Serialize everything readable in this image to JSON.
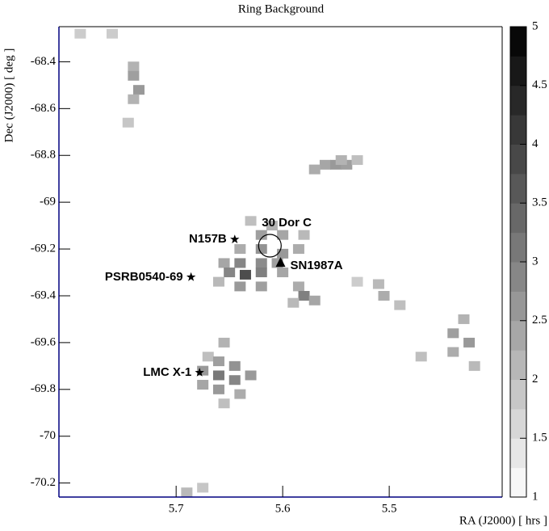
{
  "chart_data": {
    "type": "heatmap",
    "title": "Ring Background",
    "x_label": "RA (J2000) [ hrs ]",
    "y_label": "Dec (J2000) [ deg ]",
    "xlim": [
      5.81,
      5.394
    ],
    "ylim": [
      -70.26,
      -68.25
    ],
    "xticks": [
      5.7,
      5.6,
      5.5
    ],
    "yticks": [
      -68.4,
      -68.6,
      -68.8,
      -69,
      -69.2,
      -69.4,
      -69.6,
      -69.8,
      -70,
      -70.2
    ],
    "zlim": [
      1,
      5
    ],
    "zticks": [
      1,
      1.5,
      2,
      2.5,
      3,
      3.5,
      4,
      4.5,
      5
    ],
    "cells": [
      {
        "ra": 5.79,
        "dec": -68.28,
        "value": 1.8
      },
      {
        "ra": 5.76,
        "dec": -68.28,
        "value": 1.8
      },
      {
        "ra": 5.74,
        "dec": -68.42,
        "value": 2.2
      },
      {
        "ra": 5.74,
        "dec": -68.46,
        "value": 2.5
      },
      {
        "ra": 5.735,
        "dec": -68.52,
        "value": 2.6
      },
      {
        "ra": 5.74,
        "dec": -68.56,
        "value": 2.2
      },
      {
        "ra": 5.745,
        "dec": -68.66,
        "value": 1.9
      },
      {
        "ra": 5.56,
        "dec": -68.84,
        "value": 2.4
      },
      {
        "ra": 5.55,
        "dec": -68.84,
        "value": 2.6
      },
      {
        "ra": 5.54,
        "dec": -68.84,
        "value": 2.5
      },
      {
        "ra": 5.57,
        "dec": -68.86,
        "value": 2.3
      },
      {
        "ra": 5.545,
        "dec": -68.82,
        "value": 2.2
      },
      {
        "ra": 5.53,
        "dec": -68.82,
        "value": 2.0
      },
      {
        "ra": 5.63,
        "dec": -69.08,
        "value": 2.0
      },
      {
        "ra": 5.61,
        "dec": -69.1,
        "value": 2.2
      },
      {
        "ra": 5.62,
        "dec": -69.14,
        "value": 2.5
      },
      {
        "ra": 5.6,
        "dec": -69.14,
        "value": 2.4
      },
      {
        "ra": 5.58,
        "dec": -69.14,
        "value": 2.1
      },
      {
        "ra": 5.64,
        "dec": -69.2,
        "value": 2.3
      },
      {
        "ra": 5.62,
        "dec": -69.2,
        "value": 2.7
      },
      {
        "ra": 5.6,
        "dec": -69.22,
        "value": 2.6
      },
      {
        "ra": 5.585,
        "dec": -69.2,
        "value": 2.3
      },
      {
        "ra": 5.655,
        "dec": -69.26,
        "value": 2.4
      },
      {
        "ra": 5.64,
        "dec": -69.26,
        "value": 2.9
      },
      {
        "ra": 5.62,
        "dec": -69.26,
        "value": 2.8
      },
      {
        "ra": 5.605,
        "dec": -69.26,
        "value": 2.5
      },
      {
        "ra": 5.65,
        "dec": -69.3,
        "value": 2.9
      },
      {
        "ra": 5.635,
        "dec": -69.31,
        "value": 3.8
      },
      {
        "ra": 5.62,
        "dec": -69.3,
        "value": 3.0
      },
      {
        "ra": 5.6,
        "dec": -69.3,
        "value": 2.4
      },
      {
        "ra": 5.64,
        "dec": -69.36,
        "value": 2.6
      },
      {
        "ra": 5.62,
        "dec": -69.36,
        "value": 2.5
      },
      {
        "ra": 5.66,
        "dec": -69.34,
        "value": 2.1
      },
      {
        "ra": 5.585,
        "dec": -69.36,
        "value": 2.3
      },
      {
        "ra": 5.58,
        "dec": -69.4,
        "value": 3.0
      },
      {
        "ra": 5.57,
        "dec": -69.42,
        "value": 2.4
      },
      {
        "ra": 5.59,
        "dec": -69.43,
        "value": 2.1
      },
      {
        "ra": 5.655,
        "dec": -69.6,
        "value": 2.2
      },
      {
        "ra": 5.67,
        "dec": -69.66,
        "value": 2.0
      },
      {
        "ra": 5.66,
        "dec": -69.68,
        "value": 2.5
      },
      {
        "ra": 5.645,
        "dec": -69.7,
        "value": 2.7
      },
      {
        "ra": 5.675,
        "dec": -69.72,
        "value": 2.6
      },
      {
        "ra": 5.66,
        "dec": -69.74,
        "value": 3.1
      },
      {
        "ra": 5.645,
        "dec": -69.76,
        "value": 2.9
      },
      {
        "ra": 5.63,
        "dec": -69.74,
        "value": 2.6
      },
      {
        "ra": 5.675,
        "dec": -69.78,
        "value": 2.4
      },
      {
        "ra": 5.66,
        "dec": -69.8,
        "value": 2.6
      },
      {
        "ra": 5.64,
        "dec": -69.82,
        "value": 2.3
      },
      {
        "ra": 5.655,
        "dec": -69.86,
        "value": 2.0
      },
      {
        "ra": 5.51,
        "dec": -69.35,
        "value": 2.1
      },
      {
        "ra": 5.505,
        "dec": -69.4,
        "value": 2.3
      },
      {
        "ra": 5.49,
        "dec": -69.44,
        "value": 2.0
      },
      {
        "ra": 5.53,
        "dec": -69.34,
        "value": 1.8
      },
      {
        "ra": 5.43,
        "dec": -69.5,
        "value": 2.2
      },
      {
        "ra": 5.44,
        "dec": -69.56,
        "value": 2.5
      },
      {
        "ra": 5.425,
        "dec": -69.6,
        "value": 2.6
      },
      {
        "ra": 5.44,
        "dec": -69.64,
        "value": 2.3
      },
      {
        "ra": 5.42,
        "dec": -69.7,
        "value": 2.1
      },
      {
        "ra": 5.47,
        "dec": -69.66,
        "value": 2.0
      },
      {
        "ra": 5.69,
        "dec": -70.24,
        "value": 2.1
      },
      {
        "ra": 5.675,
        "dec": -70.22,
        "value": 1.9
      }
    ],
    "sources": [
      {
        "name": "N157B",
        "marker": "star",
        "ra": 5.645,
        "dec": -69.159
      },
      {
        "name": "30 Dor C",
        "marker": "circle",
        "ra": 5.612,
        "dec": -69.186
      },
      {
        "name": "SN1987A",
        "marker": "triangle",
        "ra": 5.602,
        "dec": -69.259
      },
      {
        "name": "PSRB0540-69",
        "marker": "star",
        "ra": 5.686,
        "dec": -69.32
      },
      {
        "name": "LMC X-1",
        "marker": "star",
        "ra": 5.678,
        "dec": -69.728
      }
    ]
  }
}
